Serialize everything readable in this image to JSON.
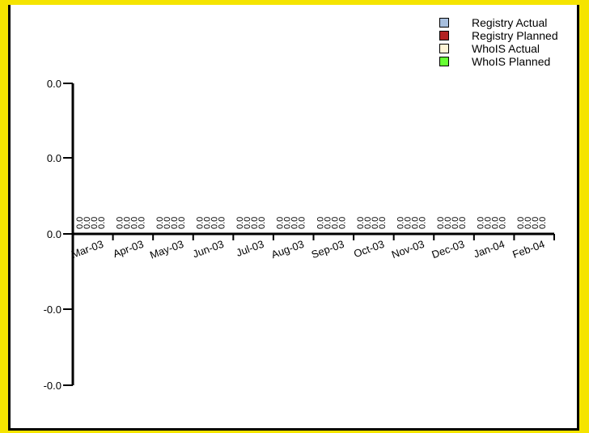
{
  "chart_data": {
    "type": "bar",
    "categories": [
      "Mar-03",
      "Apr-03",
      "May-03",
      "Jun-03",
      "Jul-03",
      "Aug-03",
      "Sep-03",
      "Oct-03",
      "Nov-03",
      "Dec-03",
      "Jan-04",
      "Feb-04"
    ],
    "series": [
      {
        "name": "Registry Actual",
        "color": "#a7bfde",
        "values": [
          0,
          0,
          0,
          0,
          0,
          0,
          0,
          0,
          0,
          0,
          0,
          0
        ]
      },
      {
        "name": "Registry Planned",
        "color": "#b22222",
        "values": [
          0,
          0,
          0,
          0,
          0,
          0,
          0,
          0,
          0,
          0,
          0,
          0
        ]
      },
      {
        "name": "WhoIS Actual",
        "color": "#fff5d6",
        "values": [
          0,
          0,
          0,
          0,
          0,
          0,
          0,
          0,
          0,
          0,
          0,
          0
        ]
      },
      {
        "name": "WhoIS Planned",
        "color": "#66ff33",
        "values": [
          0,
          0,
          0,
          0,
          0,
          0,
          0,
          0,
          0,
          0,
          0,
          0
        ]
      }
    ],
    "data_labels": [
      "0.0",
      "0.0",
      "0.0",
      "0.0"
    ],
    "y_ticks": [
      "0.0",
      "0.0",
      "0.0",
      "-0.0",
      "-0.0"
    ],
    "legend_position": "top-right"
  }
}
